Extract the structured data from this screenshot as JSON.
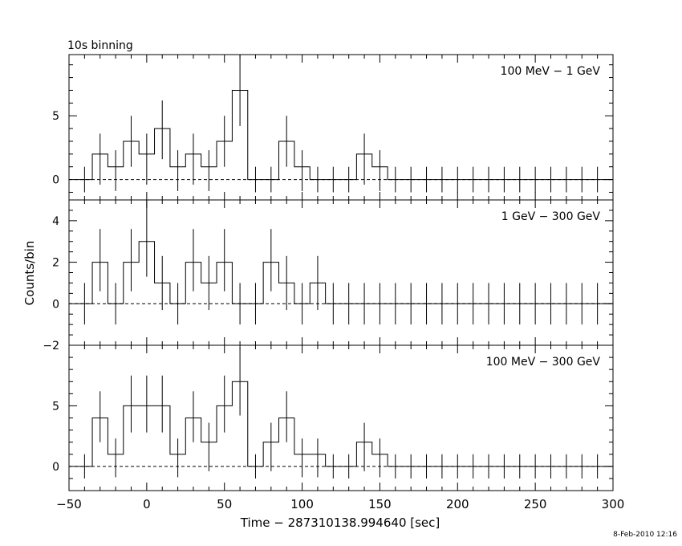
{
  "chart_data": {
    "type": "histogram",
    "title": "10s binning",
    "xlabel": "Time − 287310138.994640 [sec]",
    "ylabel": "Counts/bin",
    "xlim": [
      -50,
      300
    ],
    "x_ticks": [
      "−50",
      "0",
      "50",
      "100",
      "150",
      "200",
      "250",
      "300"
    ],
    "x_tick_values": [
      -50,
      0,
      50,
      100,
      150,
      200,
      250,
      300
    ],
    "bin_width": 10,
    "bin_starts": [
      -45,
      -35,
      -25,
      -15,
      -5,
      5,
      15,
      25,
      35,
      45,
      55,
      65,
      75,
      85,
      95,
      105,
      115,
      125,
      135,
      145,
      155,
      165,
      175,
      185,
      195,
      205,
      215,
      225,
      235,
      245,
      255,
      265,
      275,
      285,
      295
    ],
    "panels": [
      {
        "label": "100 MeV − 1 GeV",
        "ylim": [
          -1.6,
          9.8
        ],
        "y_ticks": [
          "0",
          "5"
        ],
        "y_tick_values": [
          0,
          5
        ],
        "values": [
          0,
          2,
          1,
          3,
          2,
          4,
          1,
          2,
          1,
          3,
          7,
          0,
          0,
          3,
          1,
          0,
          0,
          0,
          2,
          1,
          0,
          0,
          0,
          0,
          0,
          0,
          0,
          0,
          0,
          0,
          0,
          0,
          0,
          0,
          0
        ],
        "err_lo": [
          -1,
          -0.4,
          -0.9,
          1.0,
          -0.4,
          1.6,
          -0.9,
          -0.4,
          -0.9,
          1.0,
          4.2,
          -1,
          -1,
          1.0,
          -0.9,
          -1,
          -1,
          -1,
          -0.4,
          -0.9,
          -1,
          -1,
          -1,
          -1,
          -1,
          -1,
          -1,
          -1,
          -1,
          -1,
          -1,
          -1,
          -1,
          -1,
          -1
        ],
        "err_hi": [
          1,
          3.6,
          2.3,
          5.0,
          3.6,
          6.2,
          2.3,
          3.6,
          2.3,
          5.0,
          9.8,
          1,
          1,
          5.0,
          2.3,
          1,
          1,
          1,
          3.6,
          2.3,
          1,
          1,
          1,
          1,
          1,
          1,
          1,
          1,
          1,
          1,
          1,
          1,
          1,
          1,
          1
        ]
      },
      {
        "label": "1 GeV − 300 GeV",
        "ylim": [
          -2,
          5
        ],
        "y_ticks": [
          "−2",
          "0",
          "2",
          "4"
        ],
        "y_tick_values": [
          -2,
          0,
          2,
          4
        ],
        "values": [
          0,
          2,
          0,
          2,
          3,
          1,
          0,
          2,
          1,
          2,
          0,
          0,
          2,
          1,
          0,
          1,
          0,
          0,
          0,
          0,
          0,
          0,
          0,
          0,
          0,
          0,
          0,
          0,
          0,
          0,
          0,
          0,
          0,
          0,
          0
        ],
        "err_lo": [
          -1,
          0.6,
          -1,
          0.6,
          1.3,
          -0.3,
          -1,
          0.6,
          -0.3,
          0.6,
          -1,
          -1,
          0.6,
          -0.3,
          -1,
          -0.3,
          -1,
          -1,
          -1,
          -1,
          -1,
          -1,
          -1,
          -1,
          -1,
          -1,
          -1,
          -1,
          -1,
          -1,
          -1,
          -1,
          -1,
          -1,
          -1
        ],
        "err_hi": [
          1,
          3.6,
          1,
          3.6,
          5,
          2.3,
          1,
          3.6,
          2.3,
          3.6,
          1,
          1,
          3.6,
          2.3,
          1,
          2.3,
          1,
          1,
          1,
          1,
          1,
          1,
          1,
          1,
          1,
          1,
          1,
          1,
          1,
          1,
          1,
          1,
          1,
          1,
          1
        ]
      },
      {
        "label": "100 MeV − 300 GeV",
        "ylim": [
          -2,
          10
        ],
        "y_ticks": [
          "0",
          "5"
        ],
        "y_tick_values": [
          0,
          5
        ],
        "values": [
          0,
          4,
          1,
          5,
          5,
          5,
          1,
          4,
          2,
          5,
          7,
          0,
          2,
          4,
          1,
          1,
          0,
          0,
          2,
          1,
          0,
          0,
          0,
          0,
          0,
          0,
          0,
          0,
          0,
          0,
          0,
          0,
          0,
          0,
          0
        ],
        "err_lo": [
          -1,
          2.0,
          -0.9,
          2.8,
          2.8,
          2.8,
          -0.9,
          2.0,
          -0.4,
          2.8,
          4.2,
          -1,
          -0.4,
          2.0,
          -0.9,
          -0.9,
          -1,
          -1,
          -0.4,
          -0.9,
          -1,
          -1,
          -1,
          -1,
          -1,
          -1,
          -1,
          -1,
          -1,
          -1,
          -1,
          -1,
          -1,
          -1,
          -1
        ],
        "err_hi": [
          1,
          6.2,
          2.3,
          7.5,
          7.5,
          7.5,
          2.3,
          6.2,
          3.6,
          7.5,
          9.8,
          1,
          3.6,
          6.2,
          2.3,
          2.3,
          1,
          1,
          3.6,
          2.3,
          1,
          1,
          1,
          1,
          1,
          1,
          1,
          1,
          1,
          1,
          1,
          1,
          1,
          1,
          1
        ]
      }
    ],
    "grid": false,
    "zero_line": "dashed"
  },
  "footer": {
    "timestamp": "8-Feb-2010 12:16"
  }
}
